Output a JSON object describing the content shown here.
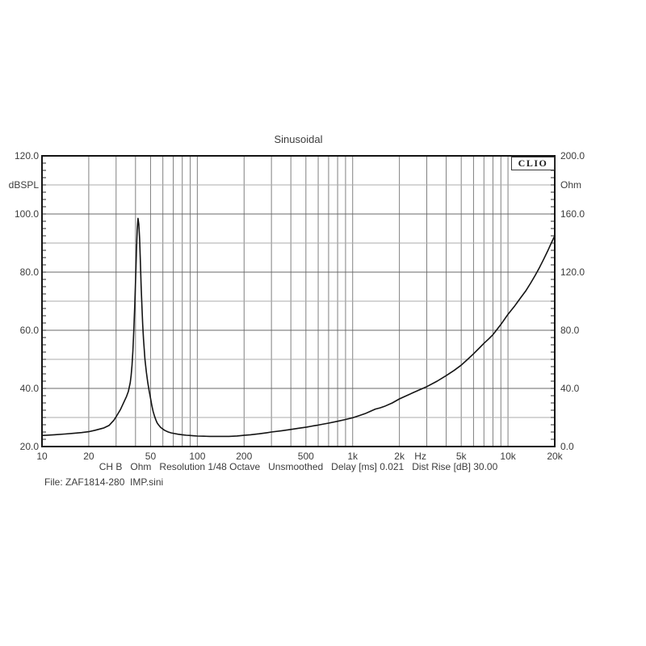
{
  "title": "Sinusoidal",
  "brand": "CLIO",
  "axes": {
    "left": {
      "unit": "dBSPL",
      "labels": [
        {
          "text": "120.0",
          "value": 120
        },
        {
          "text": "100.0",
          "value": 100
        },
        {
          "text": "80.0",
          "value": 80
        },
        {
          "text": "60.0",
          "value": 60
        },
        {
          "text": "40.0",
          "value": 40
        },
        {
          "text": "20.0",
          "value": 20
        }
      ]
    },
    "right": {
      "unit": "Ohm",
      "labels": [
        {
          "text": "200.0",
          "value": 200
        },
        {
          "text": "160.0",
          "value": 160
        },
        {
          "text": "120.0",
          "value": 120
        },
        {
          "text": "80.0",
          "value": 80
        },
        {
          "text": "40.0",
          "value": 40
        },
        {
          "text": "0.0",
          "value": 0
        }
      ]
    },
    "x": {
      "unit": "Hz",
      "labels": [
        {
          "text": "10",
          "value": 10
        },
        {
          "text": "20",
          "value": 20
        },
        {
          "text": "50",
          "value": 50
        },
        {
          "text": "100",
          "value": 100
        },
        {
          "text": "200",
          "value": 200
        },
        {
          "text": "500",
          "value": 500
        },
        {
          "text": "1k",
          "value": 1000
        },
        {
          "text": "2k",
          "value": 2000
        },
        {
          "text": "5k",
          "value": 5000
        },
        {
          "text": "10k",
          "value": 10000
        },
        {
          "text": "20k",
          "value": 20000
        }
      ]
    }
  },
  "footer": {
    "info_line": "CH B   Ohm   Resolution 1/48 Octave   Unsmoothed   Delay [ms] 0.021   Dist Rise [dB] 30.00",
    "file_line": "File: ZAF1814-280  IMP.sini"
  },
  "colors": {
    "background": "#ffffff",
    "plot_border": "#141414",
    "grid_vertical": "#808080",
    "grid_major_horizontal": "#686868",
    "grid_minor_horizontal": "#ababab",
    "tick": "#2a2a2a",
    "curve": "#141414",
    "text": "#3c3c3c"
  },
  "chart_data": {
    "type": "line",
    "title": "Sinusoidal",
    "xlabel": "Hz",
    "x_scale": "log",
    "x_range": [
      10,
      20000
    ],
    "y_left_axis": {
      "label": "dBSPL",
      "range": [
        20,
        120
      ],
      "ticks": [
        120,
        100,
        80,
        60,
        40,
        20
      ]
    },
    "y_right_axis": {
      "label": "Ohm",
      "range": [
        0,
        200
      ],
      "ticks": [
        200,
        160,
        120,
        80,
        40,
        0
      ]
    },
    "grid": "log-x, horizontal every 10 dB / 20 Ohm",
    "legend_position": "none",
    "annotations": [
      "CLIO logo top-right",
      "resonance peak ~157 Ohm at ~41.5 Hz"
    ],
    "series": [
      {
        "name": "Impedance",
        "unit": "Ohm",
        "axis": "right",
        "points_hz_ohm": [
          [
            10,
            7.6
          ],
          [
            12,
            8.1
          ],
          [
            14,
            8.6
          ],
          [
            16,
            9.1
          ],
          [
            18,
            9.6
          ],
          [
            20,
            10.2
          ],
          [
            22,
            11.2
          ],
          [
            25,
            12.8
          ],
          [
            27,
            14.5
          ],
          [
            29,
            18
          ],
          [
            30,
            20.5
          ],
          [
            31,
            23
          ],
          [
            32,
            25.5
          ],
          [
            33,
            28.5
          ],
          [
            34,
            31.5
          ],
          [
            35,
            34.5
          ],
          [
            36,
            38
          ],
          [
            37,
            44
          ],
          [
            37.5,
            49
          ],
          [
            38,
            56
          ],
          [
            38.5,
            66
          ],
          [
            39,
            80
          ],
          [
            39.5,
            96
          ],
          [
            40,
            113
          ],
          [
            40.5,
            133
          ],
          [
            41,
            149
          ],
          [
            41.5,
            157
          ],
          [
            42,
            153
          ],
          [
            42.5,
            143
          ],
          [
            43,
            126
          ],
          [
            43.5,
            110
          ],
          [
            44,
            96
          ],
          [
            44.5,
            84
          ],
          [
            45,
            74
          ],
          [
            46,
            60
          ],
          [
            47,
            51
          ],
          [
            48,
            44
          ],
          [
            49,
            38
          ],
          [
            50,
            33
          ],
          [
            51,
            28
          ],
          [
            52,
            24
          ],
          [
            53,
            21
          ],
          [
            54,
            18.5
          ],
          [
            55,
            16.5
          ],
          [
            56,
            15.2
          ],
          [
            58,
            13.2
          ],
          [
            60,
            12
          ],
          [
            62,
            11
          ],
          [
            65,
            10
          ],
          [
            68,
            9.4
          ],
          [
            70,
            9.1
          ],
          [
            75,
            8.5
          ],
          [
            80,
            8.1
          ],
          [
            85,
            7.8
          ],
          [
            90,
            7.6
          ],
          [
            95,
            7.4
          ],
          [
            100,
            7.2
          ],
          [
            110,
            7.1
          ],
          [
            120,
            7.0
          ],
          [
            140,
            7.0
          ],
          [
            160,
            7.0
          ],
          [
            180,
            7.3
          ],
          [
            200,
            7.7
          ],
          [
            220,
            8.1
          ],
          [
            250,
            8.8
          ],
          [
            280,
            9.5
          ],
          [
            300,
            10.0
          ],
          [
            350,
            10.9
          ],
          [
            400,
            11.8
          ],
          [
            450,
            12.6
          ],
          [
            500,
            13.3
          ],
          [
            550,
            14.1
          ],
          [
            600,
            14.8
          ],
          [
            650,
            15.5
          ],
          [
            700,
            16.1
          ],
          [
            800,
            17.4
          ],
          [
            900,
            18.6
          ],
          [
            1000,
            19.8
          ],
          [
            1100,
            21.2
          ],
          [
            1200,
            22.6
          ],
          [
            1300,
            24.2
          ],
          [
            1400,
            25.8
          ],
          [
            1500,
            26.6
          ],
          [
            1600,
            27.6
          ],
          [
            1800,
            30
          ],
          [
            2000,
            32.8
          ],
          [
            2200,
            34.8
          ],
          [
            2500,
            37.5
          ],
          [
            2800,
            39.8
          ],
          [
            3000,
            41.2
          ],
          [
            3500,
            45
          ],
          [
            4000,
            48.8
          ],
          [
            4500,
            52.4
          ],
          [
            5000,
            56
          ],
          [
            5500,
            60
          ],
          [
            6000,
            63.8
          ],
          [
            6500,
            67.5
          ],
          [
            7000,
            71
          ],
          [
            7500,
            74
          ],
          [
            8000,
            77
          ],
          [
            9000,
            84
          ],
          [
            10000,
            91
          ],
          [
            11000,
            96.5
          ],
          [
            12000,
            102
          ],
          [
            13000,
            107
          ],
          [
            14000,
            112.5
          ],
          [
            15000,
            118
          ],
          [
            16000,
            123.5
          ],
          [
            17000,
            129
          ],
          [
            18000,
            134.5
          ],
          [
            19000,
            140
          ],
          [
            20000,
            145
          ]
        ]
      }
    ]
  }
}
